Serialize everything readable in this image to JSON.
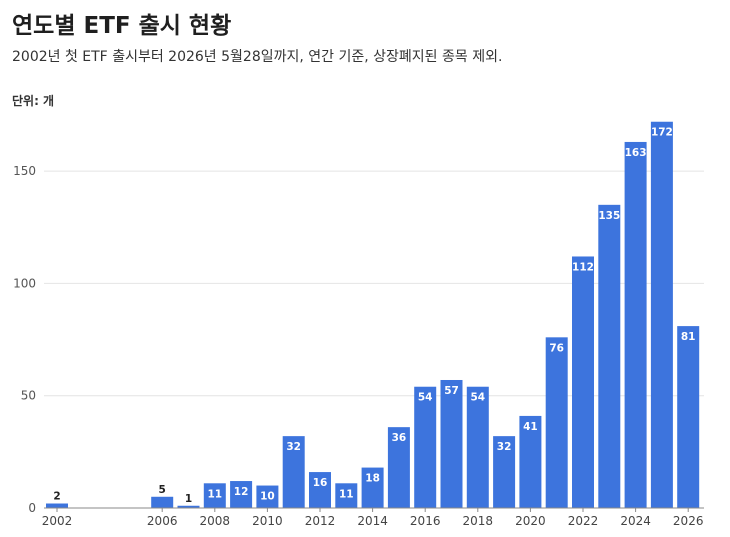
{
  "title": "연도별 ETF 출시 현황",
  "subtitle": "2002년 첫 ETF 출시부터 2026년 5월28일까지, 연간 기준, 상장폐지된 종목 제외.",
  "unit_label": "단위: 개",
  "colors": {
    "bar": "#3d74dd",
    "grid": "#e4e4e4",
    "axis": "#888888"
  },
  "chart_data": {
    "type": "bar",
    "title": "연도별 ETF 출시 현황",
    "xlabel": "",
    "ylabel": "",
    "ylim": [
      0,
      175
    ],
    "yticks": [
      0,
      50,
      100,
      150
    ],
    "x_tick_labels": [
      "2002",
      "2006",
      "2008",
      "2010",
      "2012",
      "2014",
      "2016",
      "2018",
      "2020",
      "2022",
      "2024",
      "2026"
    ],
    "categories": [
      2002,
      2006,
      2007,
      2008,
      2009,
      2010,
      2011,
      2012,
      2013,
      2014,
      2015,
      2016,
      2017,
      2018,
      2019,
      2020,
      2021,
      2022,
      2023,
      2024,
      2025,
      2026
    ],
    "values": [
      2,
      5,
      1,
      11,
      12,
      10,
      32,
      16,
      11,
      18,
      36,
      54,
      57,
      54,
      32,
      41,
      76,
      112,
      135,
      163,
      172,
      81
    ],
    "grid": true
  }
}
